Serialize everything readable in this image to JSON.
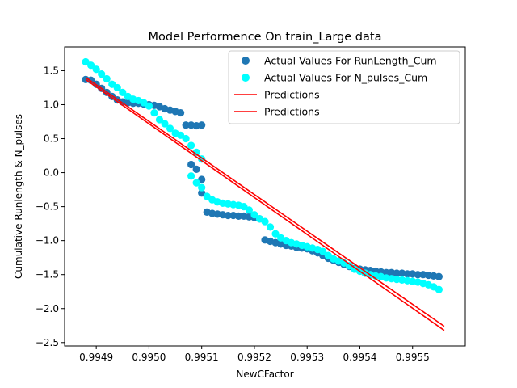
{
  "chart_data": {
    "type": "scatter",
    "title": "Model Performence On train_Large data",
    "xlabel": "NewCFactor",
    "ylabel": "Cumulative Runlength & N_pulses",
    "xlim": [
      0.99484,
      0.9956
    ],
    "ylim": [
      -2.55,
      1.85
    ],
    "xticks": [
      0.9949,
      0.995,
      0.9951,
      0.9952,
      0.9953,
      0.9954,
      0.9955
    ],
    "xtick_labels": [
      "0.9949",
      "0.9950",
      "0.9951",
      "0.9952",
      "0.9953",
      "0.9954",
      "0.9955"
    ],
    "yticks": [
      -2.5,
      -2.0,
      -1.5,
      -1.0,
      -0.5,
      0.0,
      0.5,
      1.0,
      1.5
    ],
    "ytick_labels": [
      "−2.5",
      "−2.0",
      "−1.5",
      "−1.0",
      "−0.5",
      "0.0",
      "0.5",
      "1.0",
      "1.5"
    ],
    "legend_position": "top-right",
    "series": [
      {
        "name": "Actual Values For RunLength_Cum",
        "kind": "scatter",
        "color": "#1f77b4",
        "points": [
          [
            0.99488,
            1.37
          ],
          [
            0.99489,
            1.36
          ],
          [
            0.9949,
            1.3
          ],
          [
            0.99491,
            1.24
          ],
          [
            0.99492,
            1.18
          ],
          [
            0.99493,
            1.12
          ],
          [
            0.99494,
            1.07
          ],
          [
            0.99495,
            1.04
          ],
          [
            0.99496,
            1.03
          ],
          [
            0.99497,
            1.02
          ],
          [
            0.99498,
            1.02
          ],
          [
            0.99499,
            1.01
          ],
          [
            0.995,
            1.0
          ],
          [
            0.99501,
            0.99
          ],
          [
            0.99502,
            0.97
          ],
          [
            0.99503,
            0.94
          ],
          [
            0.99504,
            0.92
          ],
          [
            0.99505,
            0.9
          ],
          [
            0.99506,
            0.88
          ],
          [
            0.99507,
            0.7
          ],
          [
            0.99508,
            0.7
          ],
          [
            0.99509,
            0.69
          ],
          [
            0.9951,
            0.7
          ],
          [
            0.99508,
            0.12
          ],
          [
            0.99509,
            0.05
          ],
          [
            0.9951,
            -0.1
          ],
          [
            0.9951,
            -0.3
          ],
          [
            0.99511,
            -0.58
          ],
          [
            0.99512,
            -0.6
          ],
          [
            0.99513,
            -0.61
          ],
          [
            0.99514,
            -0.62
          ],
          [
            0.99515,
            -0.63
          ],
          [
            0.99516,
            -0.63
          ],
          [
            0.99517,
            -0.64
          ],
          [
            0.99518,
            -0.64
          ],
          [
            0.99519,
            -0.65
          ],
          [
            0.9952,
            -0.66
          ],
          [
            0.99521,
            -0.68
          ],
          [
            0.99522,
            -0.99
          ],
          [
            0.99523,
            -1.01
          ],
          [
            0.99524,
            -1.03
          ],
          [
            0.99525,
            -1.05
          ],
          [
            0.99526,
            -1.07
          ],
          [
            0.99527,
            -1.08
          ],
          [
            0.99528,
            -1.1
          ],
          [
            0.99529,
            -1.11
          ],
          [
            0.9953,
            -1.12
          ],
          [
            0.99531,
            -1.15
          ],
          [
            0.99532,
            -1.18
          ],
          [
            0.99533,
            -1.22
          ],
          [
            0.99534,
            -1.26
          ],
          [
            0.99535,
            -1.29
          ],
          [
            0.99536,
            -1.32
          ],
          [
            0.99537,
            -1.35
          ],
          [
            0.99538,
            -1.38
          ],
          [
            0.99539,
            -1.41
          ],
          [
            0.9954,
            -1.42
          ],
          [
            0.99541,
            -1.43
          ],
          [
            0.99542,
            -1.44
          ],
          [
            0.99543,
            -1.45
          ],
          [
            0.99544,
            -1.46
          ],
          [
            0.99545,
            -1.47
          ],
          [
            0.99546,
            -1.47
          ],
          [
            0.99547,
            -1.48
          ],
          [
            0.99548,
            -1.48
          ],
          [
            0.99549,
            -1.49
          ],
          [
            0.9955,
            -1.49
          ],
          [
            0.99551,
            -1.5
          ],
          [
            0.99552,
            -1.5
          ],
          [
            0.99553,
            -1.51
          ],
          [
            0.99554,
            -1.52
          ],
          [
            0.99555,
            -1.53
          ]
        ]
      },
      {
        "name": "Actual Values For N_pulses_Cum",
        "kind": "scatter",
        "color": "#00ffff",
        "points": [
          [
            0.99488,
            1.63
          ],
          [
            0.99489,
            1.58
          ],
          [
            0.9949,
            1.52
          ],
          [
            0.99491,
            1.45
          ],
          [
            0.99492,
            1.38
          ],
          [
            0.99493,
            1.3
          ],
          [
            0.99494,
            1.25
          ],
          [
            0.99495,
            1.18
          ],
          [
            0.99496,
            1.12
          ],
          [
            0.99497,
            1.08
          ],
          [
            0.99498,
            1.06
          ],
          [
            0.99499,
            1.03
          ],
          [
            0.995,
            0.98
          ],
          [
            0.99501,
            0.88
          ],
          [
            0.99502,
            0.78
          ],
          [
            0.99503,
            0.72
          ],
          [
            0.99504,
            0.65
          ],
          [
            0.99505,
            0.58
          ],
          [
            0.99506,
            0.55
          ],
          [
            0.99507,
            0.5
          ],
          [
            0.99508,
            0.4
          ],
          [
            0.99509,
            0.3
          ],
          [
            0.9951,
            0.2
          ],
          [
            0.99508,
            -0.05
          ],
          [
            0.99509,
            -0.15
          ],
          [
            0.9951,
            -0.22
          ],
          [
            0.99511,
            -0.35
          ],
          [
            0.99512,
            -0.4
          ],
          [
            0.99513,
            -0.43
          ],
          [
            0.99514,
            -0.45
          ],
          [
            0.99515,
            -0.46
          ],
          [
            0.99516,
            -0.47
          ],
          [
            0.99517,
            -0.48
          ],
          [
            0.99518,
            -0.5
          ],
          [
            0.99519,
            -0.55
          ],
          [
            0.9952,
            -0.62
          ],
          [
            0.99521,
            -0.68
          ],
          [
            0.99522,
            -0.72
          ],
          [
            0.99523,
            -0.8
          ],
          [
            0.99524,
            -0.9
          ],
          [
            0.99525,
            -0.96
          ],
          [
            0.99526,
            -1.0
          ],
          [
            0.99527,
            -1.03
          ],
          [
            0.99528,
            -1.05
          ],
          [
            0.99529,
            -1.07
          ],
          [
            0.9953,
            -1.09
          ],
          [
            0.99531,
            -1.11
          ],
          [
            0.99532,
            -1.13
          ],
          [
            0.99533,
            -1.16
          ],
          [
            0.99534,
            -1.22
          ],
          [
            0.99535,
            -1.27
          ],
          [
            0.99536,
            -1.3
          ],
          [
            0.99537,
            -1.33
          ],
          [
            0.99538,
            -1.37
          ],
          [
            0.99539,
            -1.42
          ],
          [
            0.9954,
            -1.45
          ],
          [
            0.99541,
            -1.48
          ],
          [
            0.99542,
            -1.5
          ],
          [
            0.99543,
            -1.52
          ],
          [
            0.99544,
            -1.53
          ],
          [
            0.99545,
            -1.55
          ],
          [
            0.99546,
            -1.56
          ],
          [
            0.99547,
            -1.57
          ],
          [
            0.99548,
            -1.58
          ],
          [
            0.99549,
            -1.59
          ],
          [
            0.9955,
            -1.6
          ],
          [
            0.99551,
            -1.61
          ],
          [
            0.99552,
            -1.63
          ],
          [
            0.99553,
            -1.65
          ],
          [
            0.99554,
            -1.68
          ],
          [
            0.99555,
            -1.72
          ]
        ]
      },
      {
        "name": "Predictions",
        "kind": "line",
        "color": "#ff0000",
        "points": [
          [
            0.99488,
            1.4
          ],
          [
            0.99556,
            -2.26
          ]
        ]
      },
      {
        "name": "Predictions",
        "kind": "line",
        "color": "#ff0000",
        "points": [
          [
            0.99488,
            1.37
          ],
          [
            0.99556,
            -2.32
          ]
        ]
      }
    ]
  }
}
